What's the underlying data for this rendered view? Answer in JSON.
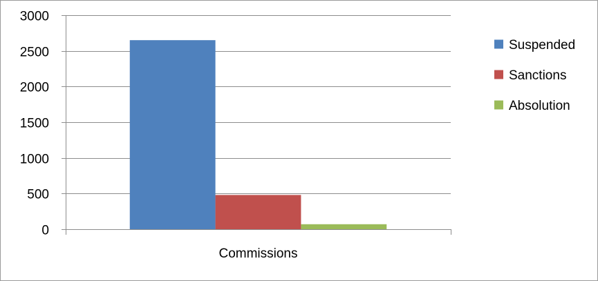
{
  "chart_data": {
    "type": "bar",
    "categories": [
      "Commissions"
    ],
    "series": [
      {
        "name": "Suspended",
        "values": [
          2650
        ],
        "color": "#4f81bd"
      },
      {
        "name": "Sanctions",
        "values": [
          480
        ],
        "color": "#c0504d"
      },
      {
        "name": "Absolution",
        "values": [
          70
        ],
        "color": "#9bbb59"
      }
    ],
    "ylim": [
      0,
      3000
    ],
    "yticks": [
      0,
      500,
      1000,
      1500,
      2000,
      2500,
      3000
    ],
    "grid": true,
    "legend_position": "right",
    "title": "",
    "xlabel": "",
    "ylabel": ""
  }
}
